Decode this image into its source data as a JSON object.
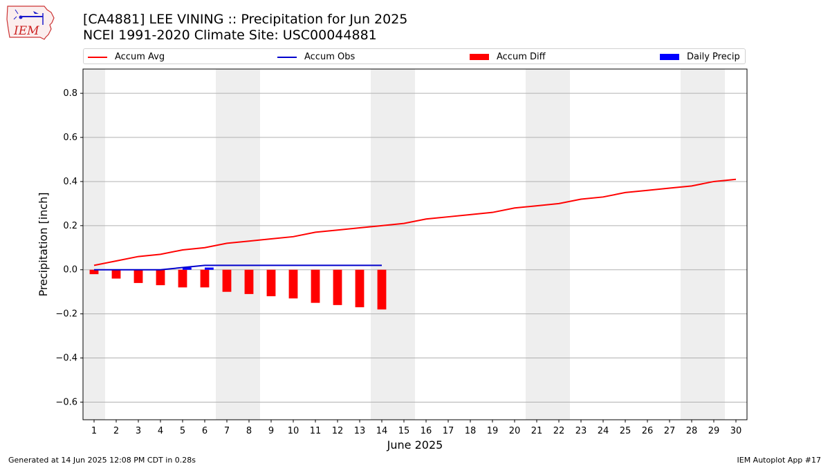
{
  "title_line1": "[CA4881] LEE VINING :: Precipitation for Jun 2025",
  "title_line2": "NCEI 1991-2020 Climate Site: USC00044881",
  "logo_text": "IEM",
  "footer_left": "Generated at 14 Jun 2025 12:08 PM CDT in 0.28s",
  "footer_right": "IEM Autoplot App #17",
  "colors": {
    "accum_avg": "#ff0000",
    "accum_obs": "#0000cc",
    "accum_diff": "#ff0000",
    "daily_precip": "#0000ff",
    "weekend_band": "#eeeeee",
    "grid": "#b0b0b0"
  },
  "legend": [
    {
      "label": "Accum Avg",
      "kind": "line",
      "color": "#ff0000"
    },
    {
      "label": "Accum Obs",
      "kind": "line",
      "color": "#0000cc"
    },
    {
      "label": "Accum Diff",
      "kind": "patch",
      "color": "#ff0000"
    },
    {
      "label": "Daily Precip",
      "kind": "patch",
      "color": "#0000ff"
    }
  ],
  "chart_data": {
    "type": "line",
    "title": "[CA4881] LEE VINING :: Precipitation for Jun 2025",
    "subtitle": "NCEI 1991-2020 Climate Site: USC00044881",
    "xlabel": "June 2025",
    "ylabel": "Precipitation [inch]",
    "x": [
      1,
      2,
      3,
      4,
      5,
      6,
      7,
      8,
      9,
      10,
      11,
      12,
      13,
      14,
      15,
      16,
      17,
      18,
      19,
      20,
      21,
      22,
      23,
      24,
      25,
      26,
      27,
      28,
      29,
      30
    ],
    "xlim": [
      0.5,
      30.5
    ],
    "ylim": [
      -0.68,
      0.91
    ],
    "yticks": [
      -0.6,
      -0.4,
      -0.2,
      0.0,
      0.2,
      0.4,
      0.6,
      0.8
    ],
    "ytick_labels": [
      "−0.6",
      "−0.4",
      "−0.2",
      "0.0",
      "0.2",
      "0.4",
      "0.6",
      "0.8"
    ],
    "grid": "horizontal",
    "legend_position": "top",
    "weekend_bands": [
      [
        0.5,
        1.5
      ],
      [
        6.5,
        8.5
      ],
      [
        13.5,
        15.5
      ],
      [
        20.5,
        22.5
      ],
      [
        27.5,
        29.5
      ]
    ],
    "series": [
      {
        "name": "Accum Avg",
        "type": "line",
        "x": [
          1,
          2,
          3,
          4,
          5,
          6,
          7,
          8,
          9,
          10,
          11,
          12,
          13,
          14,
          15,
          16,
          17,
          18,
          19,
          20,
          21,
          22,
          23,
          24,
          25,
          26,
          27,
          28,
          29,
          30
        ],
        "values": [
          0.02,
          0.04,
          0.06,
          0.07,
          0.09,
          0.1,
          0.12,
          0.13,
          0.14,
          0.15,
          0.17,
          0.18,
          0.19,
          0.2,
          0.21,
          0.23,
          0.24,
          0.25,
          0.26,
          0.28,
          0.29,
          0.3,
          0.32,
          0.33,
          0.35,
          0.36,
          0.37,
          0.38,
          0.4,
          0.41
        ]
      },
      {
        "name": "Accum Obs",
        "type": "line",
        "x": [
          1,
          2,
          3,
          4,
          5,
          6,
          7,
          8,
          9,
          10,
          11,
          12,
          13,
          14
        ],
        "values": [
          0.0,
          0.0,
          0.0,
          0.0,
          0.01,
          0.02,
          0.02,
          0.02,
          0.02,
          0.02,
          0.02,
          0.02,
          0.02,
          0.02
        ]
      },
      {
        "name": "Accum Diff",
        "type": "bar",
        "x": [
          1,
          2,
          3,
          4,
          5,
          6,
          7,
          8,
          9,
          10,
          11,
          12,
          13,
          14
        ],
        "values": [
          -0.02,
          -0.04,
          -0.06,
          -0.07,
          -0.08,
          -0.08,
          -0.1,
          -0.11,
          -0.12,
          -0.13,
          -0.15,
          -0.16,
          -0.17,
          -0.18
        ]
      },
      {
        "name": "Daily Precip",
        "type": "bar",
        "x": [
          1,
          2,
          3,
          4,
          5,
          6,
          7,
          8,
          9,
          10,
          11,
          12,
          13,
          14
        ],
        "values": [
          0,
          0,
          0,
          0,
          0.01,
          0.01,
          0,
          0,
          0,
          0,
          0,
          0,
          0,
          0
        ]
      }
    ]
  }
}
